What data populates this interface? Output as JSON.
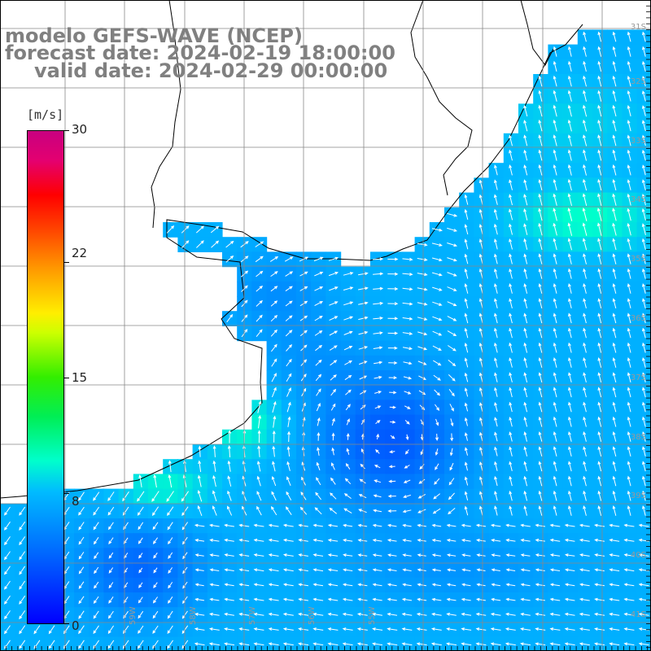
{
  "title": {
    "line1": "modelo GEFS-WAVE (NCEP)",
    "line2": "forecast date: 2024-02-19 18:00:00",
    "line3": "valid date: 2024-02-29 00:00:00"
  },
  "colorbar": {
    "unit_label": "[m/s]",
    "ticks": [
      "30",
      "22",
      "15",
      "8",
      "0"
    ],
    "tick_values": [
      30,
      22,
      15,
      8,
      0
    ],
    "range": [
      0,
      30
    ]
  },
  "grid": {
    "lat_labels": [
      "31S",
      "32S",
      "33S",
      "34S",
      "35S",
      "36S",
      "37S",
      "38S",
      "39S",
      "40S",
      "41S"
    ],
    "lon_labels": [
      "61W",
      "60W",
      "59W",
      "58W",
      "57W",
      "56W",
      "55W"
    ]
  },
  "colors": {
    "land": "#ffffff",
    "coast": "#000000",
    "arrow": "#ffffff",
    "grid": "#999999",
    "title": "#808080"
  }
}
